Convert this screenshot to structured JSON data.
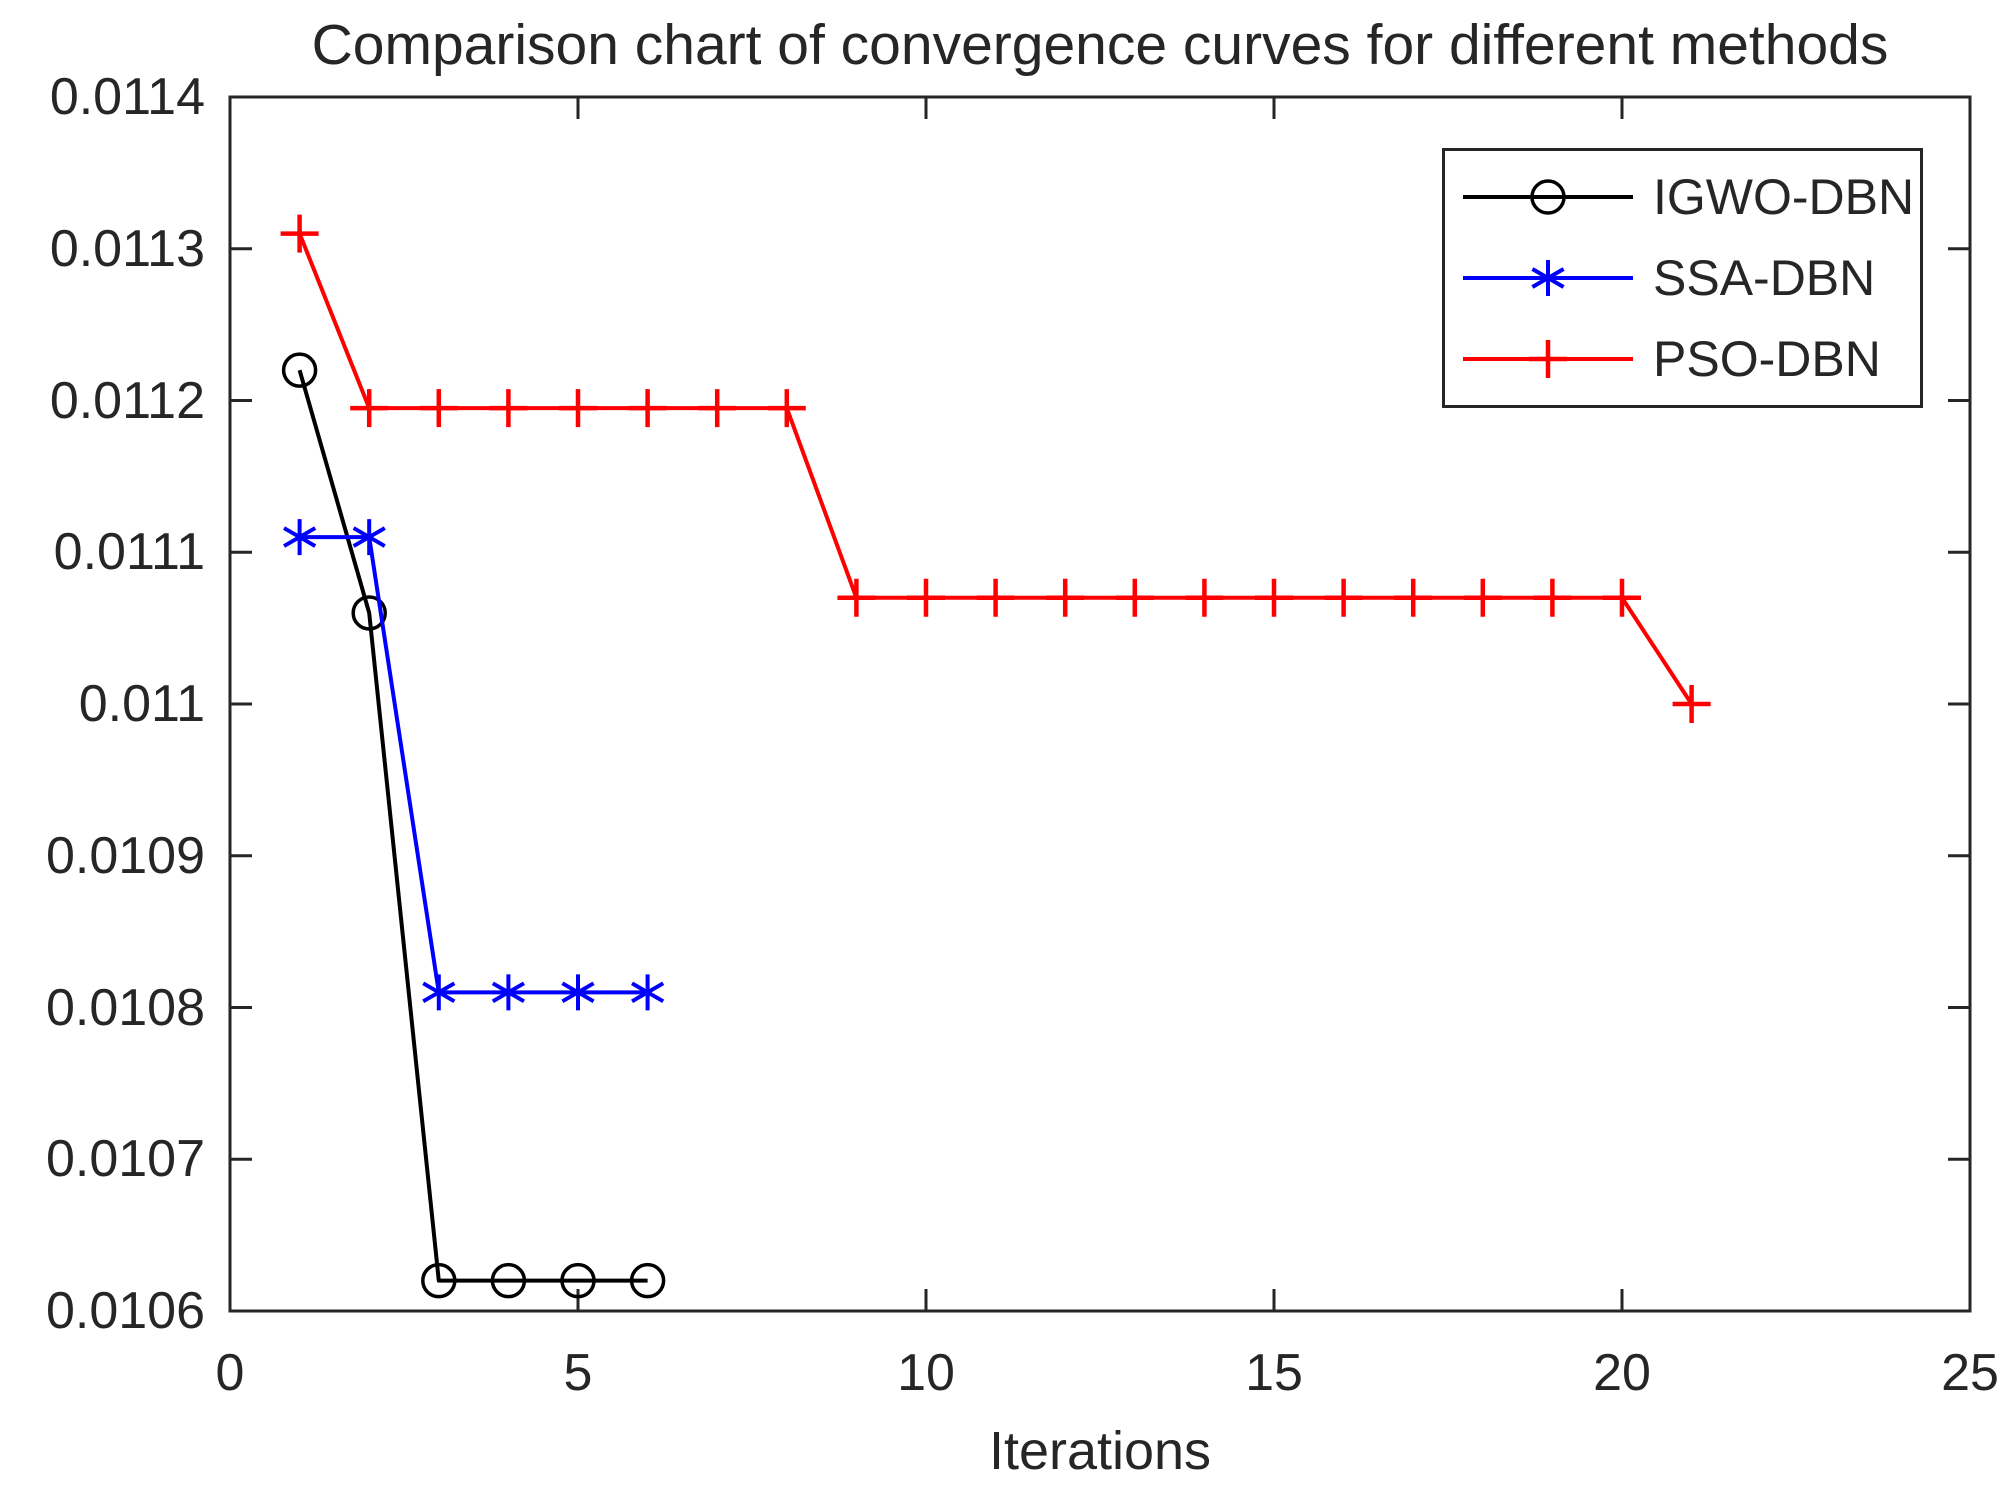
{
  "figure": {
    "background": "#ffffff",
    "axis_color": "#262626"
  },
  "chart_data": {
    "type": "line",
    "title": "Comparison chart of convergence curves for different methods",
    "xlabel": "Iterations",
    "ylabel": "",
    "xlim": [
      0,
      25
    ],
    "ylim": [
      0.0106,
      0.0114
    ],
    "x_tick_labels": [
      "0",
      "5",
      "10",
      "15",
      "20",
      "25"
    ],
    "y_tick_labels": [
      "0.0114",
      "0.0113",
      "0.0112",
      "0.0111",
      "0.011",
      "0.0109",
      "0.0108",
      "0.0107",
      "0.0106"
    ],
    "grid": false,
    "legend": {
      "position": "upper-right-inside",
      "entries": [
        "IGWO-DBN",
        "SSA-DBN",
        "PSO-DBN"
      ]
    },
    "series": [
      {
        "name": "IGWO-DBN",
        "color": "#000000",
        "marker": "circle",
        "x": [
          1,
          2,
          3,
          4,
          5,
          6
        ],
        "y": [
          0.01122,
          0.01106,
          0.01062,
          0.01062,
          0.01062,
          0.01062
        ]
      },
      {
        "name": "SSA-DBN",
        "color": "#0000ff",
        "marker": "asterisk",
        "x": [
          1,
          2,
          3,
          4,
          5,
          6
        ],
        "y": [
          0.01111,
          0.01111,
          0.01081,
          0.01081,
          0.01081,
          0.01081
        ]
      },
      {
        "name": "PSO-DBN",
        "color": "#ff0000",
        "marker": "plus",
        "x": [
          1,
          2,
          3,
          4,
          5,
          6,
          7,
          8,
          9,
          10,
          11,
          12,
          13,
          14,
          15,
          16,
          17,
          18,
          19,
          20,
          21
        ],
        "y": [
          0.01131,
          0.011195,
          0.011195,
          0.011195,
          0.011195,
          0.011195,
          0.011195,
          0.011195,
          0.01107,
          0.01107,
          0.01107,
          0.01107,
          0.01107,
          0.01107,
          0.01107,
          0.01107,
          0.01107,
          0.01107,
          0.01107,
          0.01107,
          0.011
        ]
      }
    ]
  }
}
